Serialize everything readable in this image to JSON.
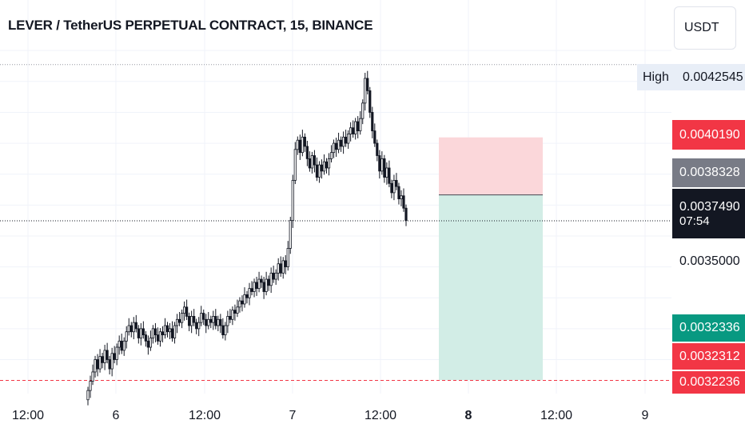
{
  "header": {
    "title": "LEVER / TetherUS PERPETUAL CONTRACT, 15, BINANCE",
    "currency_button": "USDT"
  },
  "price_scale": {
    "high_label": "High",
    "high_value": "0.0042545",
    "tags": {
      "stop_loss": "0.0040190",
      "entry": "0.0038328",
      "current_price": "0.0037490",
      "countdown": "07:54",
      "take_profit": "0.0032336",
      "level_red_1": "0.0032312",
      "level_red_2": "0.0032236"
    },
    "axis_value": "0.0035000"
  },
  "time_axis": {
    "labels": [
      "12:00",
      "6",
      "12:00",
      "7",
      "12:00",
      "8",
      "12:00",
      "9"
    ]
  },
  "chart_data": {
    "type": "candlestick",
    "symbol": "LEVER / TetherUS PERPETUAL CONTRACT",
    "interval": "15",
    "exchange": "BINANCE",
    "y_range": [
      0.00319,
      0.00436
    ],
    "high": 0.0042545,
    "last_price": 0.003749,
    "position": {
      "type": "short",
      "entry": 0.0038328,
      "stop": 0.004019,
      "target": 0.0032336
    },
    "colors": {
      "candle_up": "#ffffff",
      "candle_down": "#131722",
      "stop_zone": "#fbd7da",
      "target_zone": "#d2ede6",
      "stop_tag": "#f23645",
      "entry_tag": "#787b86",
      "price_tag": "#131722",
      "target_tag": "#089981",
      "red_level_tag": "#f23645"
    },
    "closes": [
      0.0032,
      0.00323,
      0.00326,
      0.0033,
      0.00327,
      0.00331,
      0.00329,
      0.00333,
      0.0033,
      0.00327,
      0.00332,
      0.0033,
      0.00334,
      0.00336,
      0.00333,
      0.00336,
      0.00339,
      0.00341,
      0.00339,
      0.00342,
      0.0034,
      0.00337,
      0.0034,
      0.00338,
      0.00336,
      0.00334,
      0.00337,
      0.0034,
      0.00338,
      0.00336,
      0.00339,
      0.00338,
      0.00341,
      0.00339,
      0.0034,
      0.00337,
      0.00341,
      0.00343,
      0.00342,
      0.00345,
      0.00347,
      0.00344,
      0.00341,
      0.00344,
      0.00342,
      0.0034,
      0.00342,
      0.00345,
      0.00343,
      0.00341,
      0.00343,
      0.00342,
      0.00344,
      0.00341,
      0.00343,
      0.00341,
      0.00338,
      0.00341,
      0.00344,
      0.00343,
      0.00346,
      0.00345,
      0.00347,
      0.00349,
      0.00348,
      0.00351,
      0.0035,
      0.00353,
      0.00352,
      0.00355,
      0.00353,
      0.00356,
      0.00355,
      0.00352,
      0.00356,
      0.00354,
      0.00358,
      0.00356,
      0.00358,
      0.00361,
      0.00358,
      0.00362,
      0.0036,
      0.00366,
      0.00375,
      0.00388,
      0.00398,
      0.00401,
      0.00397,
      0.00402,
      0.00399,
      0.00395,
      0.00392,
      0.00396,
      0.00393,
      0.00389,
      0.00393,
      0.00391,
      0.00394,
      0.00392,
      0.00395,
      0.00397,
      0.004,
      0.00398,
      0.00401,
      0.00399,
      0.00402,
      0.004,
      0.00403,
      0.00405,
      0.00403,
      0.00407,
      0.00404,
      0.00408,
      0.00413,
      0.00421,
      0.00417,
      0.0041,
      0.00404,
      0.004,
      0.00396,
      0.00391,
      0.00395,
      0.00389,
      0.00392,
      0.00387,
      0.00384,
      0.00388,
      0.00386,
      0.00382,
      0.00383,
      0.00379,
      0.00375
    ]
  }
}
